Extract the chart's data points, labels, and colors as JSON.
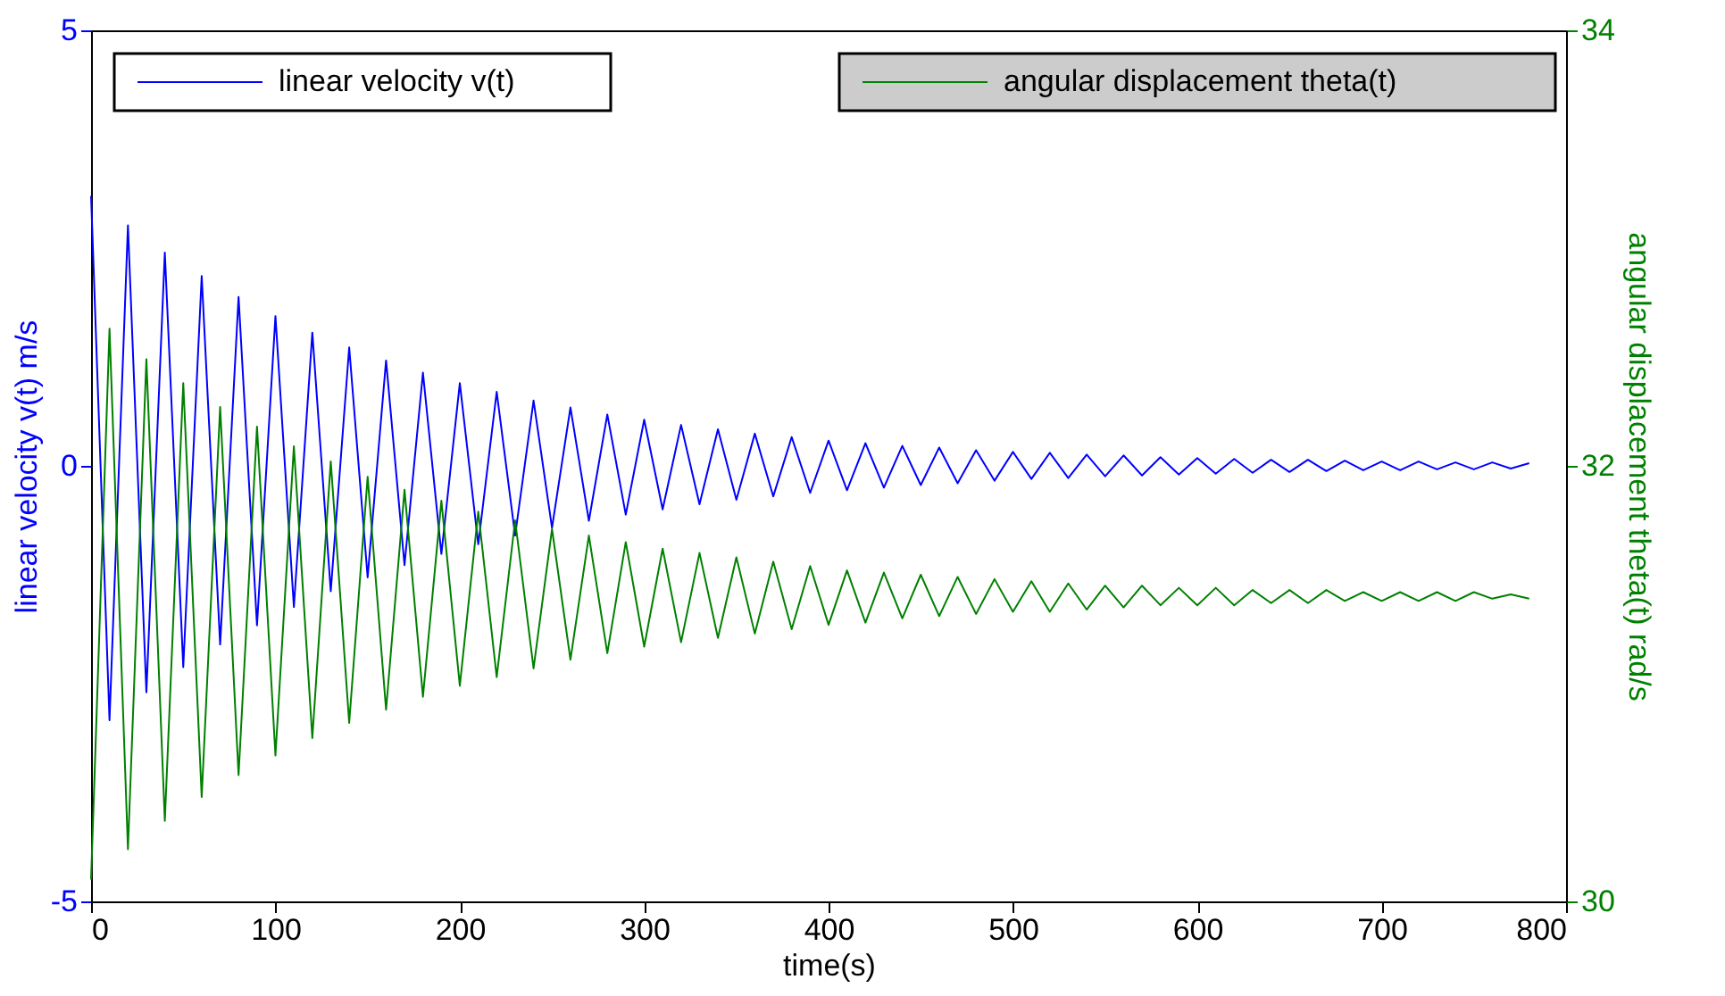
{
  "chart_data": {
    "type": "line",
    "xlabel": "time(s)",
    "ylabel": "linear velocity v(t) m/s",
    "y2label": "angular displacement theta(t) rad/s",
    "xlim": [
      0,
      800
    ],
    "xticks": [
      0,
      100,
      200,
      300,
      400,
      500,
      600,
      700,
      800
    ],
    "ylim": [
      -5,
      5
    ],
    "yticks": [
      -5,
      0,
      5
    ],
    "y2lim": [
      30,
      34
    ],
    "y2ticks": [
      30,
      32,
      34
    ],
    "grid": false,
    "legend": "top",
    "marker": "none",
    "line_style": "solid",
    "x": [
      0,
      10,
      20,
      30,
      40,
      50,
      60,
      70,
      80,
      90,
      100,
      110,
      120,
      130,
      140,
      150,
      160,
      170,
      180,
      190,
      200,
      210,
      220,
      230,
      240,
      250,
      260,
      270,
      280,
      290,
      300,
      310,
      320,
      330,
      340,
      350,
      360,
      370,
      380,
      390,
      400,
      410,
      420,
      430,
      440,
      450,
      460,
      470,
      480,
      490,
      500,
      510,
      520,
      530,
      540,
      550,
      560,
      570,
      580,
      590,
      600,
      610,
      620,
      630,
      640,
      650,
      660,
      670,
      680,
      690,
      700,
      710,
      720,
      730,
      740,
      750,
      760,
      770,
      780
    ],
    "series": [
      {
        "name": "linear velocity v(t)",
        "color": "#0000ff",
        "values": [
          3.1,
          -2.92,
          2.76,
          -2.6,
          2.45,
          -2.31,
          2.18,
          -2.05,
          1.94,
          -1.83,
          1.72,
          -1.62,
          1.53,
          -1.44,
          1.36,
          -1.28,
          1.21,
          -1.14,
          1.07,
          -1.01,
          0.95,
          -0.9,
          0.85,
          -0.8,
          0.75,
          -0.71,
          0.67,
          -0.63,
          0.59,
          -0.56,
          0.53,
          -0.5,
          0.47,
          -0.44,
          0.42,
          -0.39,
          0.37,
          -0.35,
          0.33,
          -0.31,
          0.29,
          -0.28,
          0.26,
          -0.25,
          0.23,
          -0.22,
          0.21,
          -0.2,
          0.18,
          -0.17,
          0.16,
          -0.15,
          0.15,
          -0.14,
          0.13,
          -0.12,
          0.12,
          -0.11,
          0.1,
          -0.1,
          0.09,
          -0.09,
          0.08,
          -0.08,
          0.07,
          -0.07,
          0.07,
          -0.06,
          0.06,
          -0.05,
          0.05,
          -0.05,
          0.05,
          -0.04,
          0.04,
          -0.04,
          0.04,
          -0.03,
          0.03
        ]
      },
      {
        "name": "angular displacement theta(t)",
        "color": "#008000",
        "axis": "y2",
        "values": [
          30.1,
          32.63,
          30.24,
          32.49,
          30.37,
          32.38,
          30.48,
          32.27,
          30.58,
          32.18,
          30.67,
          32.09,
          30.75,
          32.02,
          30.82,
          31.95,
          30.88,
          31.89,
          30.94,
          31.84,
          30.99,
          31.79,
          31.03,
          31.75,
          31.07,
          31.71,
          31.11,
          31.68,
          31.14,
          31.65,
          31.17,
          31.62,
          31.19,
          31.6,
          31.21,
          31.58,
          31.23,
          31.56,
          31.25,
          31.54,
          31.27,
          31.52,
          31.28,
          31.51,
          31.3,
          31.5,
          31.31,
          31.49,
          31.32,
          31.48,
          31.33,
          31.47,
          31.33,
          31.46,
          31.34,
          31.45,
          31.35,
          31.45,
          31.36,
          31.44,
          31.36,
          31.44,
          31.36,
          31.43,
          31.37,
          31.43,
          31.37,
          31.43,
          31.38,
          31.42,
          31.38,
          31.42,
          31.38,
          31.42,
          31.38,
          31.42,
          31.39,
          31.41,
          31.39
        ]
      }
    ]
  }
}
